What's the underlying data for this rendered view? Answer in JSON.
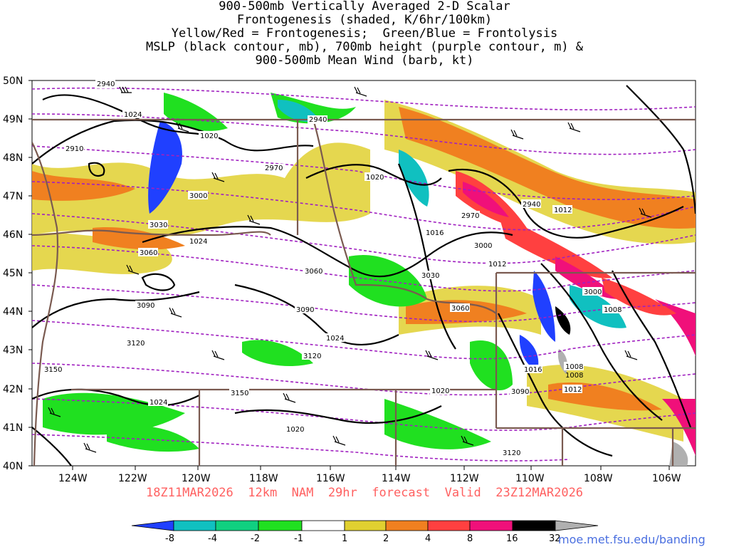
{
  "titles": [
    "900-500mb Vertically Averaged 2-D Scalar",
    "Frontogenesis (shaded, K/6hr/100km)",
    "Yellow/Red = Frontogenesis;  Green/Blue = Frontolysis",
    "MSLP (black contour, mb), 700mb height (purple contour, m) &",
    "900-500mb Mean Wind (barb, kt)"
  ],
  "lat_labels": [
    "50N",
    "49N",
    "48N",
    "47N",
    "46N",
    "45N",
    "44N",
    "43N",
    "42N",
    "41N",
    "40N"
  ],
  "lon_labels": [
    "124W",
    "122W",
    "120W",
    "118W",
    "116W",
    "114W",
    "112W",
    "110W",
    "108W",
    "106W"
  ],
  "footer": "18Z11MAR2026  12km  NAM  29hr  forecast  Valid  23Z12MAR2026",
  "colorbar": {
    "labels": [
      "-8",
      "-4",
      "-2",
      "-1",
      "1",
      "2",
      "4",
      "8",
      "16",
      "32"
    ],
    "colors": [
      "#2040ff",
      "#10c0c0",
      "#10d080",
      "#20e020",
      "#ffffff",
      "#e0d030",
      "#f08020",
      "#ff4040",
      "#f0107a",
      "#000000",
      "#b0b0b0"
    ]
  },
  "url": "moe.met.fsu.edu/banding",
  "pressure_labels": [
    "1024",
    "1020",
    "1024",
    "1020",
    "1016",
    "1012",
    "1012",
    "1008",
    "1024",
    "1008",
    "1016",
    "1020",
    "1024",
    "1012",
    "1020",
    "1008"
  ],
  "height_labels": [
    "2940",
    "2940",
    "2970",
    "3000",
    "3030",
    "3060",
    "3060",
    "3090",
    "3090",
    "3120",
    "3120",
    "3150",
    "3150",
    "2970",
    "3000",
    "2940",
    "3000",
    "3030",
    "3060",
    "3090",
    "3120",
    "2910"
  ],
  "colors": {
    "pressure": "#000000",
    "height": "#a020c0",
    "border": "#7a5a50",
    "footer": "#ff6060"
  }
}
